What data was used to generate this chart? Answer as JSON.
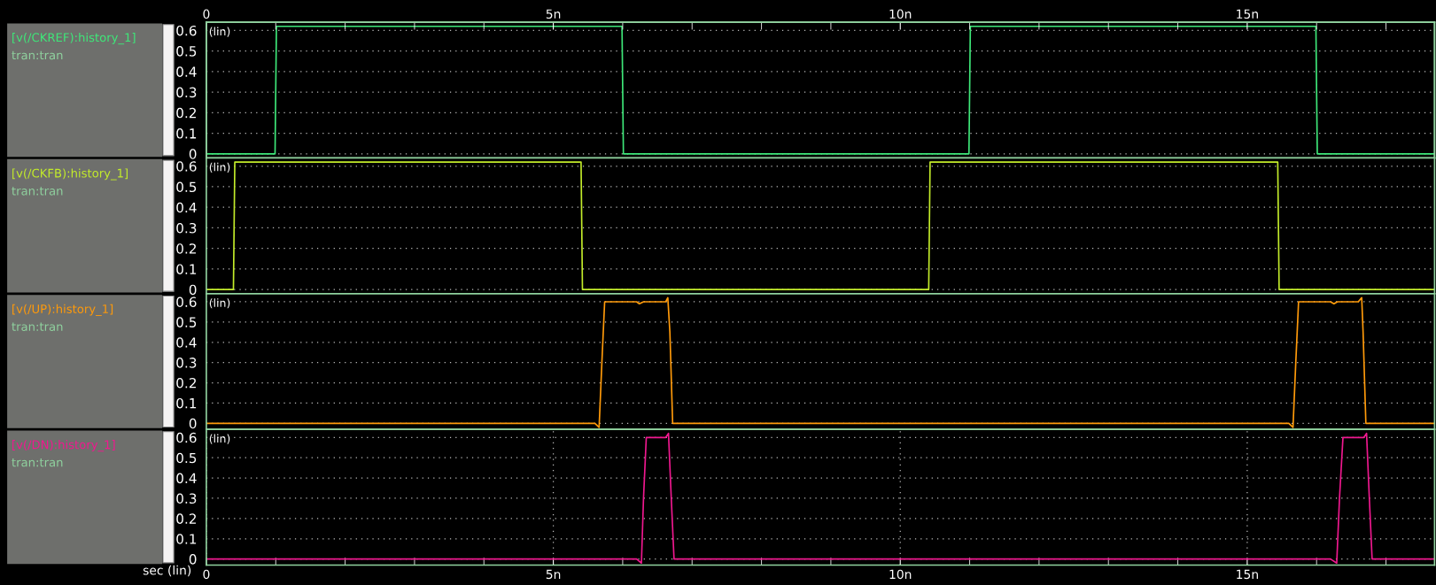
{
  "chart_data": [
    {
      "type": "line",
      "legend": "left",
      "grid": true,
      "tick_labels": "y",
      "annotations": [
        "(lin)",
        "tran:tran"
      ],
      "xlim": [
        0,
        17.7
      ],
      "x2lim": [
        0,
        17.7
      ],
      "x2ticks": [
        0,
        {
          "value": 1,
          "label": null
        },
        {
          "value": 2,
          "label": null
        },
        {
          "value": 3,
          "label": null
        },
        {
          "value": 4,
          "label": null
        },
        {
          "value": 5,
          "label": "5n"
        },
        {
          "value": 6,
          "label": null
        },
        {
          "value": 7,
          "label": null
        },
        {
          "value": 8,
          "label": null
        },
        {
          "value": 9,
          "label": null
        },
        {
          "value": 10,
          "label": "10n"
        },
        {
          "value": 11,
          "label": null
        },
        {
          "value": 12,
          "label": null
        },
        {
          "value": 13,
          "label": null
        },
        {
          "value": 14,
          "label": null
        },
        {
          "value": 15,
          "label": "15n"
        },
        {
          "value": 16,
          "label": null
        },
        {
          "value": 17,
          "label": null
        }
      ],
      "ylim": [
        -0.02,
        0.64
      ],
      "yticks": [
        0,
        0.1,
        0.2,
        0.3,
        0.4,
        0.5,
        0.6
      ],
      "series": [
        {
          "name": "[v(/CKREF):history_1]",
          "color": "#3ee879",
          "x": [
            0,
            0.99,
            1.01,
            5.99,
            6.01,
            10.99,
            11.01,
            15.99,
            16.01,
            17.7
          ],
          "values": [
            0,
            0,
            0.62,
            0.62,
            0,
            0,
            0.62,
            0.62,
            0,
            0
          ]
        }
      ]
    },
    {
      "type": "line",
      "legend": "left",
      "grid": true,
      "tick_labels": "y",
      "annotations": [
        "(lin)",
        "tran:tran"
      ],
      "xlim": [
        0,
        17.7
      ],
      "ylim": [
        -0.02,
        0.64
      ],
      "yticks": [
        0,
        0.1,
        0.2,
        0.3,
        0.4,
        0.5,
        0.6
      ],
      "series": [
        {
          "name": "[v(/CKFB):history_1]",
          "color": "#c3ec2a",
          "x": [
            0,
            0.39,
            0.41,
            5.4,
            5.42,
            10.41,
            10.43,
            15.44,
            15.46,
            17.7
          ],
          "values": [
            0,
            0,
            0.62,
            0.62,
            0,
            0,
            0.62,
            0.62,
            0,
            0
          ]
        }
      ]
    },
    {
      "type": "line",
      "legend": "left",
      "grid": true,
      "tick_labels": "y",
      "annotations": [
        "(lin)",
        "tran:tran"
      ],
      "xlim": [
        0,
        17.7
      ],
      "ylim": [
        -0.03,
        0.64
      ],
      "yticks": [
        0,
        0.1,
        0.2,
        0.3,
        0.4,
        0.5,
        0.6
      ],
      "series": [
        {
          "name": "[v(/UP):history_1]",
          "color": "#ff9a0a",
          "x": [
            0,
            5.6,
            5.66,
            5.7,
            5.74,
            5.78,
            6.2,
            6.24,
            6.3,
            6.62,
            6.65,
            6.68,
            6.72,
            15.6,
            15.66,
            15.7,
            15.74,
            15.78,
            16.2,
            16.25,
            16.3,
            16.6,
            16.65,
            16.67,
            16.71,
            17.7
          ],
          "values": [
            0,
            0,
            -0.02,
            0.3,
            0.6,
            0.6,
            0.6,
            0.59,
            0.6,
            0.6,
            0.62,
            0.45,
            0,
            0,
            -0.02,
            0.3,
            0.6,
            0.6,
            0.6,
            0.59,
            0.6,
            0.6,
            0.62,
            0.45,
            0,
            0
          ]
        }
      ]
    },
    {
      "type": "line",
      "legend": "left",
      "grid": true,
      "annotations": [
        "(lin)",
        "tran:tran"
      ],
      "xlabel": "sec (lin)",
      "xlim": [
        0,
        17.7
      ],
      "xticks": [
        0,
        {
          "value": 1,
          "label": null
        },
        {
          "value": 2,
          "label": null
        },
        {
          "value": 3,
          "label": null
        },
        {
          "value": 4,
          "label": null
        },
        {
          "value": 5,
          "label": "5n"
        },
        {
          "value": 6,
          "label": null
        },
        {
          "value": 7,
          "label": null
        },
        {
          "value": 8,
          "label": null
        },
        {
          "value": 9,
          "label": null
        },
        {
          "value": 10,
          "label": "10n"
        },
        {
          "value": 11,
          "label": null
        },
        {
          "value": 12,
          "label": null
        },
        {
          "value": 13,
          "label": null
        },
        {
          "value": 14,
          "label": null
        },
        {
          "value": 15,
          "label": "15n"
        },
        {
          "value": 16,
          "label": null
        },
        {
          "value": 17,
          "label": null
        }
      ],
      "ylim": [
        -0.03,
        0.64
      ],
      "yticks": [
        0,
        0.1,
        0.2,
        0.3,
        0.4,
        0.5,
        0.6
      ],
      "series": [
        {
          "name": "[v(/DN):history_1]",
          "color": "#f0188f",
          "x": [
            0,
            6.2,
            6.27,
            6.3,
            6.34,
            6.62,
            6.66,
            6.7,
            6.74,
            16.2,
            16.29,
            16.33,
            16.38,
            16.68,
            16.72,
            16.76,
            16.8,
            17.7
          ],
          "values": [
            0,
            0,
            -0.02,
            0.3,
            0.6,
            0.6,
            0.62,
            0.3,
            0,
            0,
            -0.02,
            0.3,
            0.6,
            0.6,
            0.62,
            0.3,
            0,
            0
          ]
        }
      ]
    }
  ]
}
